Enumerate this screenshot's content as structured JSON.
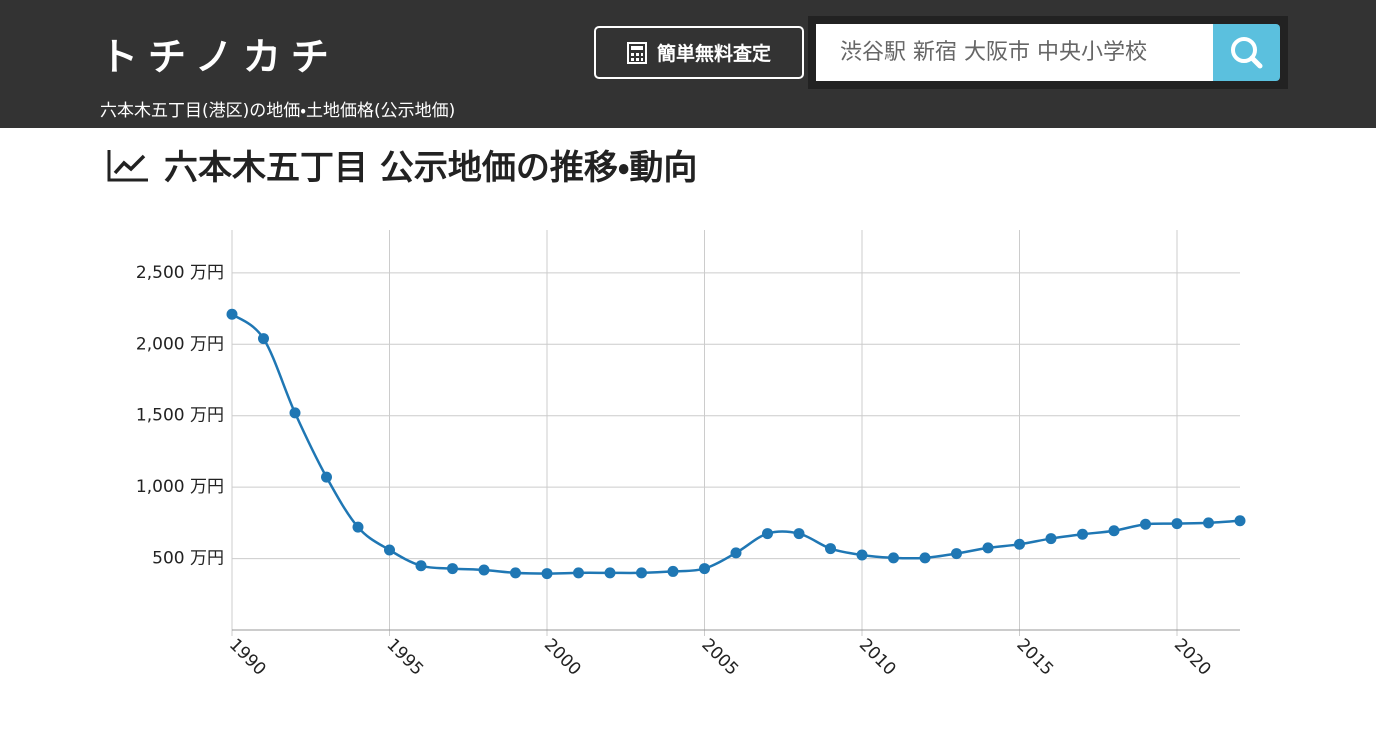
{
  "header": {
    "logo": "トチノカチ",
    "appraisal_button": "簡単無料査定",
    "search_placeholder": "渋谷駅 新宿 大阪市 中央小学校",
    "breadcrumb": "六本木五丁目(港区)の地価・土地価格(公示地価)"
  },
  "heading": "六本木五丁目 公示地価の推移・動向",
  "chart_data": {
    "type": "line",
    "x": [
      1990,
      1991,
      1992,
      1993,
      1994,
      1995,
      1996,
      1997,
      1998,
      1999,
      2000,
      2001,
      2002,
      2003,
      2004,
      2005,
      2006,
      2007,
      2008,
      2009,
      2010,
      2011,
      2012,
      2013,
      2014,
      2015,
      2016,
      2017,
      2018,
      2019,
      2020,
      2021,
      2022
    ],
    "series": [
      {
        "color": "#1f77b4",
        "values": [
          2210,
          2040,
          1520,
          1070,
          720,
          560,
          450,
          430,
          420,
          400,
          395,
          400,
          400,
          400,
          410,
          430,
          540,
          675,
          675,
          570,
          525,
          505,
          505,
          535,
          575,
          600,
          640,
          670,
          695,
          740,
          745,
          750,
          765
        ]
      }
    ],
    "xlim": [
      1990,
      2022
    ],
    "xticks": [
      1990,
      1995,
      2000,
      2005,
      2010,
      2015,
      2020
    ],
    "ylim": [
      0,
      2800
    ],
    "yticks": [
      {
        "value": 500,
        "label": "500 万円"
      },
      {
        "value": 1000,
        "label": "1,000 万円"
      },
      {
        "value": 1500,
        "label": "1,500 万円"
      },
      {
        "value": 2000,
        "label": "2,000 万円"
      },
      {
        "value": 2500,
        "label": "2,500 万円"
      }
    ],
    "grid": true
  }
}
